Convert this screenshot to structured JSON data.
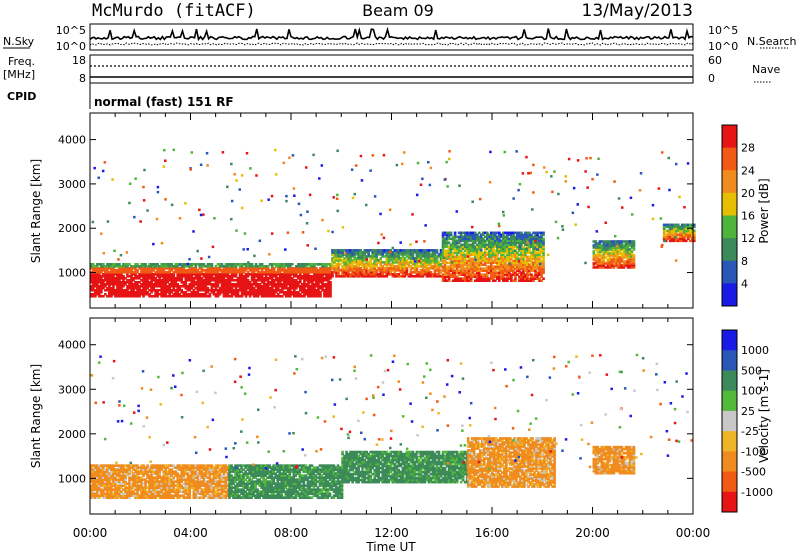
{
  "header": {
    "station": "McMurdo (fitACF)",
    "beam": "Beam 09",
    "date": "13/May/2013"
  },
  "status_panel": {
    "nsky_label": "N.Sky",
    "nsearch_label": "N.Search",
    "noise_ticks_left": [
      "10^5",
      "10^0"
    ],
    "noise_ticks_right": [
      "10^5",
      "10^0"
    ],
    "freq_label": "Freq.",
    "freq_unit": "[MHz]",
    "freq_ticks": [
      "18",
      "8"
    ],
    "nave_label": "Nave",
    "nave_ticks": [
      "60",
      "0"
    ],
    "cpid_label": "CPID",
    "cpid_value": "normal (fast) 151 RF"
  },
  "colors": {
    "power_scale": [
      "#1a1ae6",
      "#2a56b8",
      "#3c8a5a",
      "#4fb43c",
      "#e6c000",
      "#f08c1e",
      "#f05a14",
      "#e61414"
    ],
    "velocity_scale": [
      "#e61414",
      "#f05a14",
      "#f08c1e",
      "#f0b428",
      "#c8c8c8",
      "#52b93a",
      "#3c8a5a",
      "#2a56b8",
      "#1a1ae6"
    ]
  },
  "chart_data": [
    {
      "type": "heatmap",
      "panel": "power",
      "xlabel": "Time UT",
      "ylabel": "Slant Range [km]",
      "x_ticks": [
        "00:00",
        "04:00",
        "08:00",
        "12:00",
        "16:00",
        "20:00",
        "00:00"
      ],
      "xlim_hours": [
        0,
        24
      ],
      "y_ticks": [
        1000,
        2000,
        3000,
        4000
      ],
      "ylim": [
        200,
        4600
      ],
      "colorbar": {
        "label": "Power [dB]",
        "ticks": [
          "28",
          "24",
          "20",
          "16",
          "12",
          "8",
          "4"
        ],
        "range": [
          0,
          32
        ]
      },
      "features": [
        {
          "t": [
            0,
            9.6
          ],
          "range_km": [
            450,
            1200
          ],
          "power_db": "28+"
        },
        {
          "t": [
            9.6,
            14
          ],
          "range_km": [
            900,
            1500
          ],
          "power_db": "16-28"
        },
        {
          "t": [
            14,
            18
          ],
          "range_km": [
            800,
            1900
          ],
          "power_db": "8-28"
        },
        {
          "t": [
            20,
            21.6
          ],
          "range_km": [
            1100,
            1700
          ],
          "power_db": "8-24"
        },
        {
          "t": [
            22.8,
            24
          ],
          "range_km": [
            1700,
            2100
          ],
          "power_db": "4-12"
        }
      ]
    },
    {
      "type": "heatmap",
      "panel": "velocity",
      "xlabel": "Time UT",
      "ylabel": "Slant Range [km]",
      "x_ticks": [
        "00:00",
        "04:00",
        "08:00",
        "12:00",
        "16:00",
        "20:00",
        "00:00"
      ],
      "xlim_hours": [
        0,
        24
      ],
      "y_ticks": [
        1000,
        2000,
        3000,
        4000
      ],
      "ylim": [
        200,
        4600
      ],
      "colorbar": {
        "label": "Velocity [m s-1]",
        "ticks": [
          "1000",
          "500",
          "100",
          "25",
          "-25",
          "-100",
          "-500",
          "-1000"
        ],
        "range": [
          -1000,
          1000
        ]
      },
      "features": [
        {
          "t": [
            0,
            5.5
          ],
          "range_km": [
            550,
            1300
          ],
          "velocity": "-100 to -500"
        },
        {
          "t": [
            5.5,
            10
          ],
          "range_km": [
            550,
            1300
          ],
          "velocity": "100 to 500"
        },
        {
          "t": [
            10,
            15
          ],
          "range_km": [
            900,
            1600
          ],
          "velocity": "100 to 500"
        },
        {
          "t": [
            15,
            18.5
          ],
          "range_km": [
            800,
            1900
          ],
          "velocity": "-100 to -500"
        },
        {
          "t": [
            20,
            21.6
          ],
          "range_km": [
            1100,
            1700
          ],
          "velocity": "-100 to -500"
        }
      ]
    }
  ]
}
